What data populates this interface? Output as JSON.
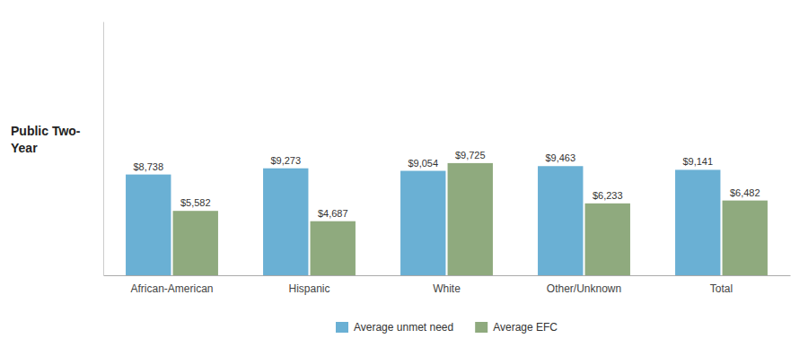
{
  "chart_data": {
    "type": "bar",
    "ylabel": "Public Two-\nYear",
    "categories": [
      "African-American",
      "Hispanic",
      "White",
      "Other/Unknown",
      "Total"
    ],
    "series": [
      {
        "name": "Average unmet need",
        "color": "#6ab0d4",
        "values": [
          8738,
          9273,
          9054,
          9463,
          9141
        ],
        "value_labels": [
          "$8,738",
          "$9,273",
          "$9,054",
          "$9,463",
          "$9,141"
        ]
      },
      {
        "name": "Average EFC",
        "color": "#8faa7e",
        "values": [
          5582,
          4687,
          9725,
          6233,
          6482
        ],
        "value_labels": [
          "$5,582",
          "$4,687",
          "$9,725",
          "$6,233",
          "$6,482"
        ]
      }
    ],
    "ylim": [
      0,
      22000
    ],
    "tick_labels": "x",
    "data_labels": true,
    "legend": "bottom",
    "grid": false
  }
}
